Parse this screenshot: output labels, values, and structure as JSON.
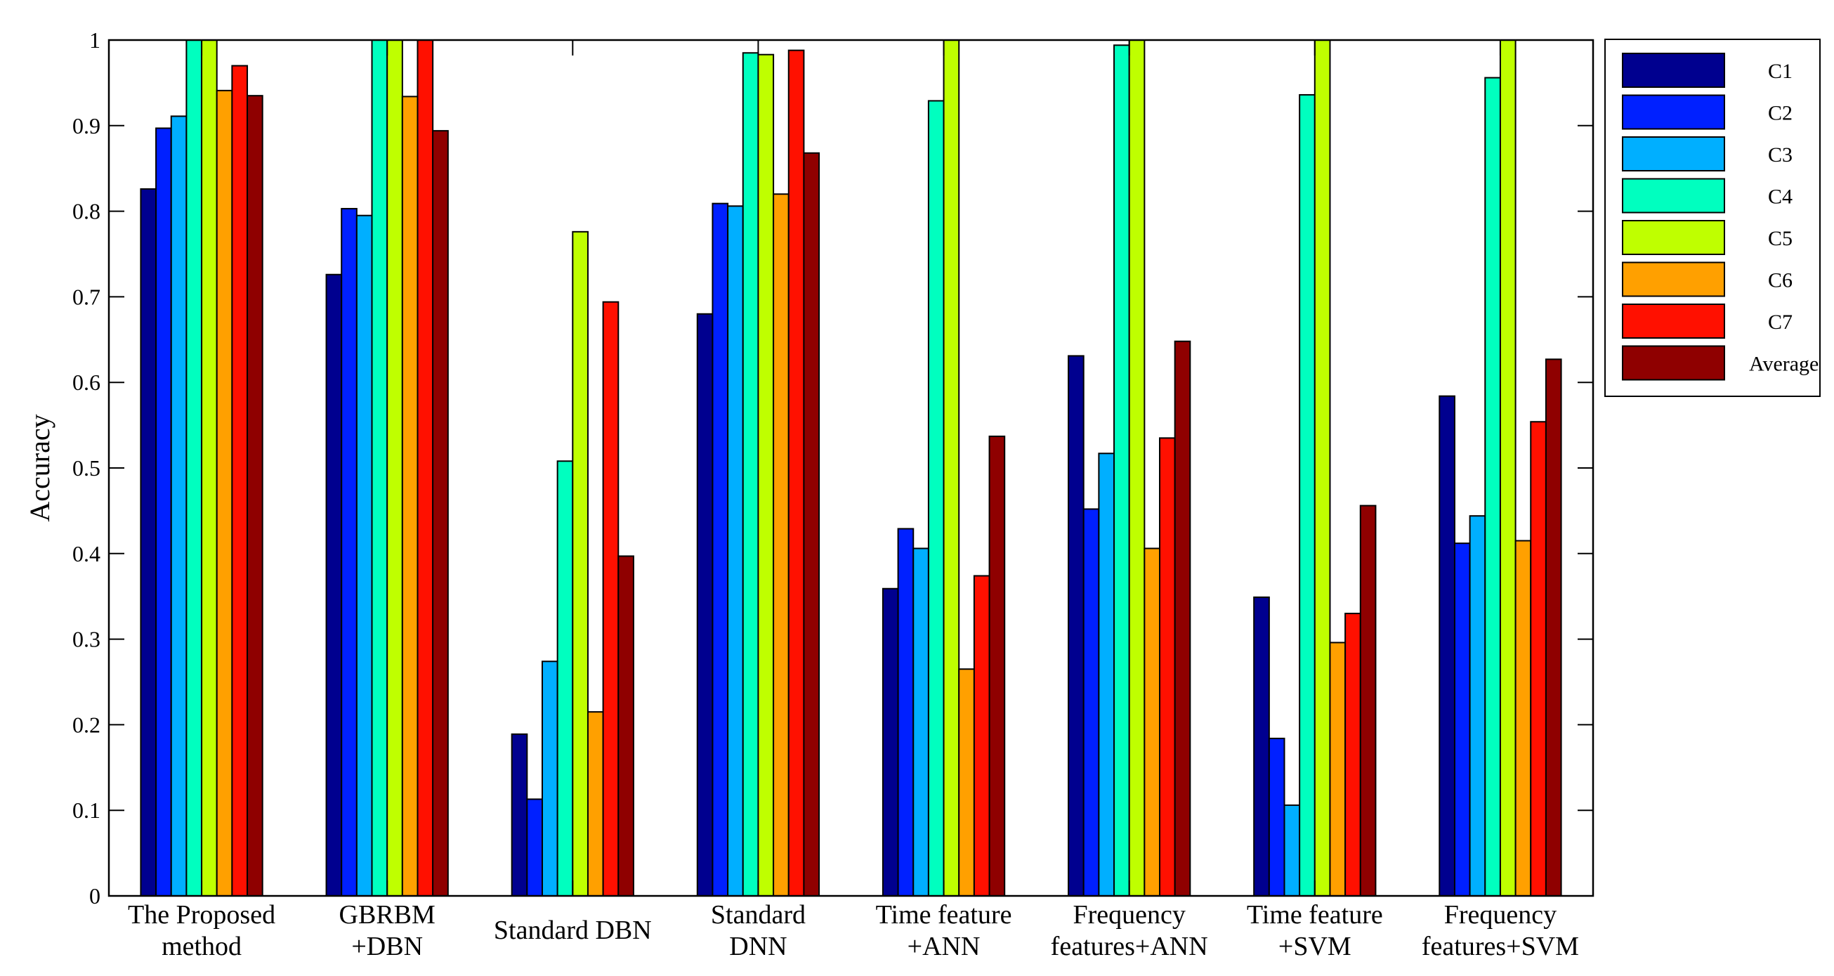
{
  "chart_data": {
    "type": "bar",
    "title": "",
    "xlabel": "",
    "ylabel": "Accuracy",
    "ylim": [
      0,
      1
    ],
    "yticks": [
      0,
      0.1,
      0.2,
      0.3,
      0.4,
      0.5,
      0.6,
      0.7,
      0.8,
      0.9,
      1
    ],
    "ytick_labels": [
      "0",
      "0.1",
      "0.2",
      "0.3",
      "0.4",
      "0.5",
      "0.6",
      "0.7",
      "0.8",
      "0.9",
      "1"
    ],
    "grid": false,
    "legend_position": "right",
    "categories": [
      [
        "The Proposed",
        "method"
      ],
      [
        "GBRBM",
        "+DBN"
      ],
      [
        "Standard DBN"
      ],
      [
        "Standard",
        "DNN"
      ],
      [
        "Time feature",
        "+ANN"
      ],
      [
        "Frequency",
        "features+ANN"
      ],
      [
        "Time feature",
        "+SVM"
      ],
      [
        "Frequency",
        "features+SVM"
      ]
    ],
    "series": [
      {
        "name": "C1",
        "color": "#00008f",
        "values": [
          0.826,
          0.726,
          0.189,
          0.68,
          0.359,
          0.631,
          0.349,
          0.584
        ]
      },
      {
        "name": "C2",
        "color": "#0020ff",
        "values": [
          0.897,
          0.803,
          0.113,
          0.809,
          0.429,
          0.452,
          0.184,
          0.412
        ]
      },
      {
        "name": "C3",
        "color": "#00afff",
        "values": [
          0.911,
          0.795,
          0.274,
          0.806,
          0.406,
          0.517,
          0.106,
          0.444
        ]
      },
      {
        "name": "C4",
        "color": "#00ffbf",
        "values": [
          1.0,
          1.0,
          0.508,
          0.985,
          0.929,
          0.994,
          0.936,
          0.956
        ]
      },
      {
        "name": "C5",
        "color": "#bfff00",
        "values": [
          1.0,
          1.0,
          0.776,
          0.983,
          1.0,
          1.0,
          1.0,
          1.0
        ]
      },
      {
        "name": "C6",
        "color": "#ffa000",
        "values": [
          0.941,
          0.934,
          0.215,
          0.82,
          0.265,
          0.406,
          0.296,
          0.415
        ]
      },
      {
        "name": "C7",
        "color": "#ff1000",
        "values": [
          0.97,
          1.0,
          0.694,
          0.988,
          0.374,
          0.535,
          0.33,
          0.554
        ]
      },
      {
        "name": "Average",
        "color": "#8f0000",
        "values": [
          0.935,
          0.894,
          0.397,
          0.868,
          0.537,
          0.648,
          0.456,
          0.627
        ]
      }
    ]
  }
}
